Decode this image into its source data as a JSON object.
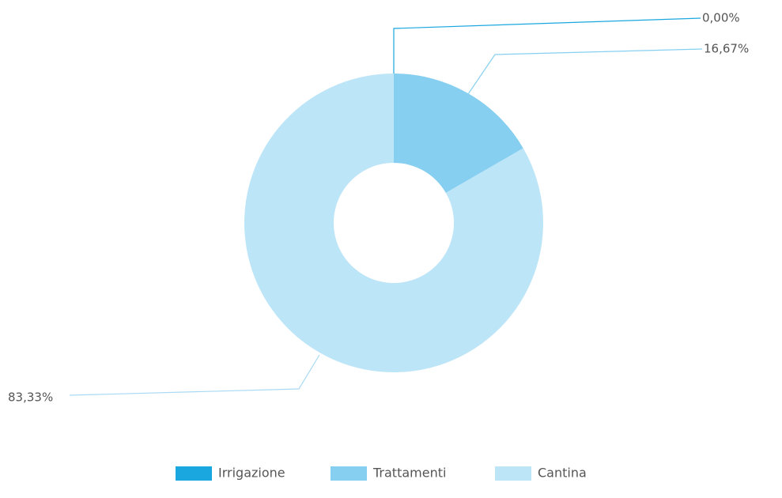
{
  "chart_data": {
    "type": "pie",
    "variant": "donut",
    "title": "",
    "categories": [
      "Irrigazione",
      "Trattamenti",
      "Cantina"
    ],
    "values": [
      0.0,
      16.67,
      83.33
    ],
    "labels": [
      "0,00%",
      "16,67%",
      "83,33%"
    ],
    "unit": "%",
    "colors": [
      "#1aa7e0",
      "#86cff1",
      "#bde5f8"
    ],
    "legend_position": "bottom-center"
  }
}
